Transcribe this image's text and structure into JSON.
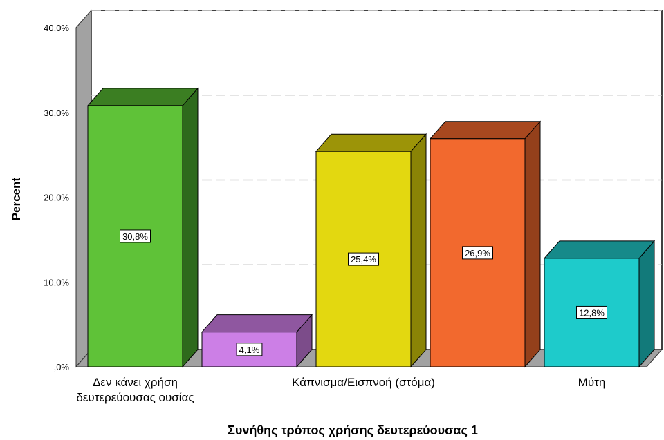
{
  "chart_data": {
    "type": "bar",
    "style": "3d",
    "categories": [
      "Δεν κάνει χρήση δευτερεύουσας ουσίας",
      "",
      "Κάπνισμα/Εισπνοή (στόμα)",
      "",
      "Μύτη"
    ],
    "category_axis_labels": [
      {
        "index": 0,
        "lines": [
          "Δεν κάνει χρήση",
          "δευτερεύουσας ουσίας"
        ]
      },
      {
        "index": 2,
        "lines": [
          "Κάπνισμα/Εισπνοή (στόμα)"
        ]
      },
      {
        "index": 4,
        "lines": [
          "Μύτη"
        ]
      }
    ],
    "values": [
      30.8,
      4.1,
      25.4,
      26.9,
      12.8
    ],
    "data_labels": [
      "30,8%",
      "4,1%",
      "25,4%",
      "26,9%",
      "12,8%"
    ],
    "colors": {
      "front": [
        "#5fc238",
        "#cc7fe6",
        "#e3d810",
        "#f2692e",
        "#1ecbcb"
      ],
      "side": [
        "#2e6a1c",
        "#7c4c8a",
        "#8a8406",
        "#94401b",
        "#127a7a"
      ],
      "top": [
        "#3b7e22",
        "#8f57a0",
        "#9c9408",
        "#a8481f",
        "#168a8a"
      ]
    },
    "xlabel": "Συνήθης τρόπος χρήσης δευτερεύουσας 1",
    "ylabel": "Percent",
    "ylim": [
      0,
      40
    ],
    "yticks": [
      0,
      10,
      20,
      30,
      40
    ],
    "ytick_labels": [
      ",0%",
      "10,0%",
      "20,0%",
      "30,0%",
      "40,0%"
    ],
    "grid": true
  }
}
